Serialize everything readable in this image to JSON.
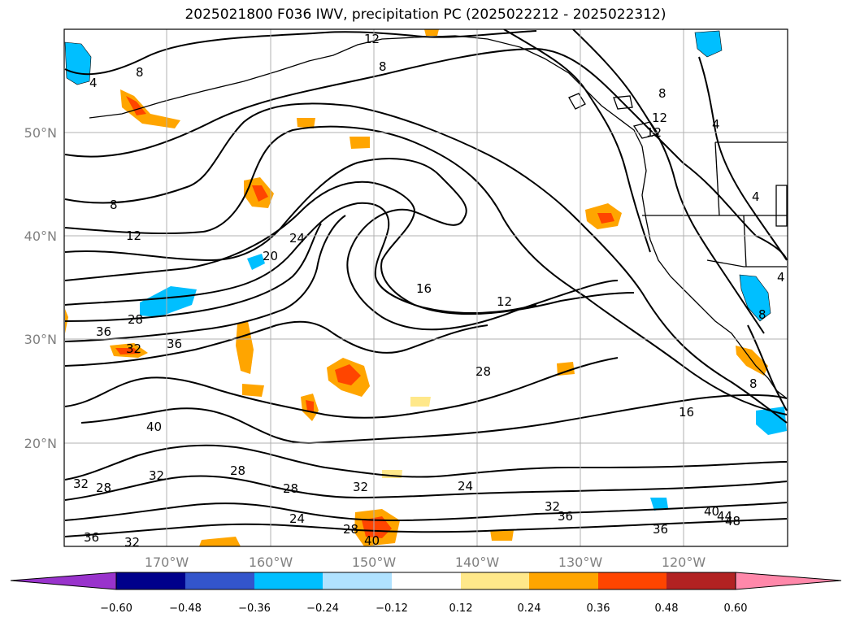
{
  "title": "2025021800 F036 IWV, precipitation PC (2025022212 - 2025022312)",
  "map": {
    "lat_labels": [
      "50°N",
      "40°N",
      "30°N",
      "20°N"
    ],
    "lon_labels": [
      "170°W",
      "160°W",
      "150°W",
      "140°W",
      "130°W",
      "120°W"
    ],
    "grid": true,
    "contour_labels": [
      {
        "id": "c1",
        "text": "12"
      },
      {
        "id": "c2",
        "text": "8"
      },
      {
        "id": "c3",
        "text": "4"
      },
      {
        "id": "c4",
        "text": "8"
      },
      {
        "id": "c5",
        "text": "8"
      },
      {
        "id": "c6",
        "text": "12"
      },
      {
        "id": "c7",
        "text": "12"
      },
      {
        "id": "c8",
        "text": "4"
      },
      {
        "id": "c9",
        "text": "4"
      },
      {
        "id": "c10",
        "text": "8"
      },
      {
        "id": "c11",
        "text": "12"
      },
      {
        "id": "c12",
        "text": "20"
      },
      {
        "id": "c13",
        "text": "24"
      },
      {
        "id": "c14",
        "text": "16"
      },
      {
        "id": "c15",
        "text": "12"
      },
      {
        "id": "c16",
        "text": "28"
      },
      {
        "id": "c17",
        "text": "36"
      },
      {
        "id": "c18",
        "text": "36"
      },
      {
        "id": "c19",
        "text": "32"
      },
      {
        "id": "c20",
        "text": "28"
      },
      {
        "id": "c21",
        "text": "40"
      },
      {
        "id": "c22",
        "text": "32"
      },
      {
        "id": "c23",
        "text": "28"
      },
      {
        "id": "c24",
        "text": "32"
      },
      {
        "id": "c25",
        "text": "28"
      },
      {
        "id": "c26",
        "text": "28"
      },
      {
        "id": "c27",
        "text": "32"
      },
      {
        "id": "c28",
        "text": "24"
      },
      {
        "id": "c29",
        "text": "24"
      },
      {
        "id": "c30",
        "text": "28"
      },
      {
        "id": "c31",
        "text": "36"
      },
      {
        "id": "c32",
        "text": "32"
      },
      {
        "id": "c33",
        "text": "40"
      },
      {
        "id": "c34",
        "text": "32"
      },
      {
        "id": "c35",
        "text": "36"
      },
      {
        "id": "c36",
        "text": "36"
      },
      {
        "id": "c37",
        "text": "40"
      },
      {
        "id": "c38",
        "text": "44"
      },
      {
        "id": "c39",
        "text": "48"
      },
      {
        "id": "c40",
        "text": "16"
      },
      {
        "id": "c41",
        "text": "8"
      },
      {
        "id": "c42",
        "text": "8"
      },
      {
        "id": "c43",
        "text": "4"
      }
    ]
  },
  "colorbar": {
    "ticks": [
      "−0.60",
      "−0.48",
      "−0.36",
      "−0.24",
      "−0.12",
      "0.12",
      "0.24",
      "0.36",
      "0.48",
      "0.60"
    ],
    "colors": [
      "#9933cc",
      "#00008b",
      "#3355cc",
      "#00bfff",
      "#b0e2ff",
      "#ffffff",
      "#ffe88a",
      "#ffa500",
      "#ff4500",
      "#b22222",
      "#ff88aa"
    ]
  }
}
